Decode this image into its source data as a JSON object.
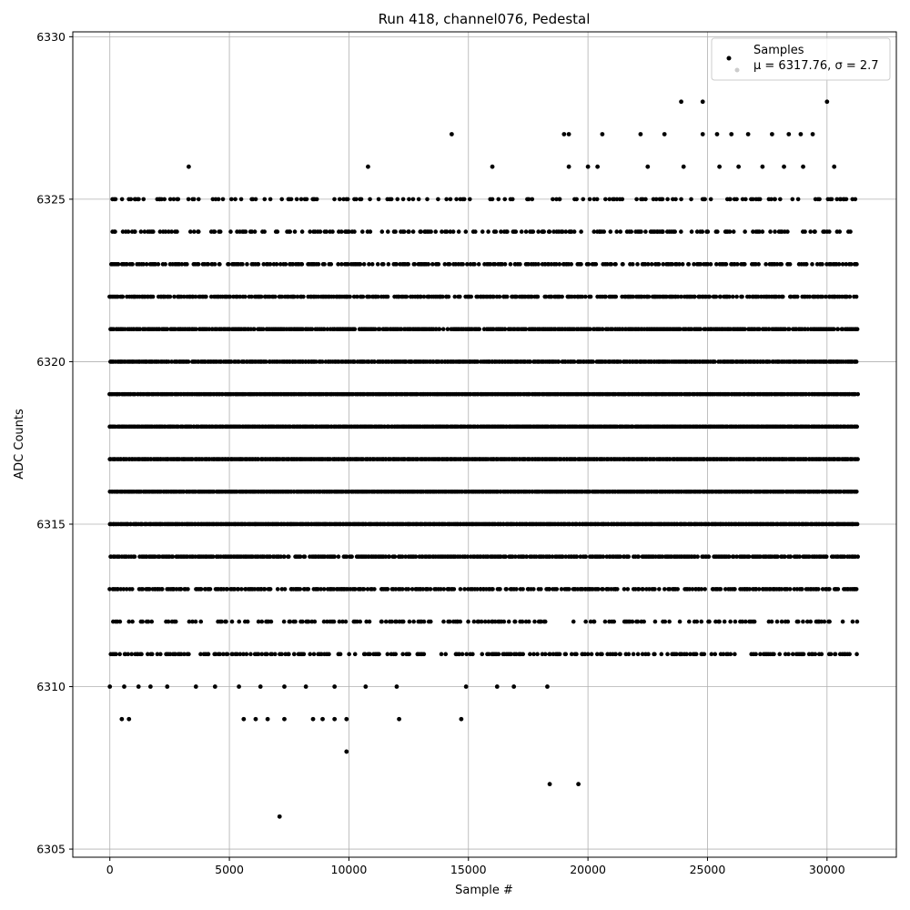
{
  "chart_data": {
    "type": "scatter",
    "title": "Run 418, channel076, Pedestal",
    "xlabel": "Sample #",
    "ylabel": "ADC Counts",
    "xlim": [
      -1550,
      32900
    ],
    "ylim": [
      6304.75,
      6330.15
    ],
    "xticks": [
      0,
      5000,
      10000,
      15000,
      20000,
      25000,
      30000
    ],
    "yticks": [
      6305,
      6310,
      6315,
      6320,
      6325,
      6330
    ],
    "grid": true,
    "legend_position": "top-right",
    "legend": {
      "title": "Samples",
      "entries": [
        "μ = 6317.76, σ = 2.7"
      ]
    },
    "series": [
      {
        "name": "Samples",
        "color": "#000000",
        "x_range": [
          0,
          31300
        ],
        "dense_levels": [
          {
            "y": 6311,
            "x_end": 31300,
            "density": 0.45
          },
          {
            "y": 6312,
            "x_end": 31300,
            "density": 0.3
          },
          {
            "y": 6313,
            "x_end": 31300,
            "density": 0.65
          },
          {
            "y": 6314,
            "x_end": 31300,
            "density": 0.8
          },
          {
            "y": 6315,
            "x_end": 31300,
            "density": 1.0
          },
          {
            "y": 6316,
            "x_end": 31300,
            "density": 1.0
          },
          {
            "y": 6317,
            "x_end": 31300,
            "density": 1.0
          },
          {
            "y": 6318,
            "x_end": 31300,
            "density": 1.0
          },
          {
            "y": 6319,
            "x_end": 31300,
            "density": 1.0
          },
          {
            "y": 6320,
            "x_end": 31300,
            "density": 0.95
          },
          {
            "y": 6321,
            "x_end": 31300,
            "density": 0.9
          },
          {
            "y": 6322,
            "x_end": 31300,
            "density": 0.7
          },
          {
            "y": 6323,
            "x_end": 31300,
            "density": 0.55
          },
          {
            "y": 6324,
            "x_end": 31300,
            "density": 0.4
          },
          {
            "y": 6325,
            "x_end": 31300,
            "density": 0.3
          }
        ],
        "outliers": [
          {
            "x": 3300,
            "y": 6326
          },
          {
            "x": 10800,
            "y": 6326
          },
          {
            "x": 16000,
            "y": 6326
          },
          {
            "x": 19200,
            "y": 6326
          },
          {
            "x": 20000,
            "y": 6326
          },
          {
            "x": 20400,
            "y": 6326
          },
          {
            "x": 22500,
            "y": 6326
          },
          {
            "x": 24000,
            "y": 6326
          },
          {
            "x": 25500,
            "y": 6326
          },
          {
            "x": 26300,
            "y": 6326
          },
          {
            "x": 27300,
            "y": 6326
          },
          {
            "x": 28200,
            "y": 6326
          },
          {
            "x": 29000,
            "y": 6326
          },
          {
            "x": 30300,
            "y": 6326
          },
          {
            "x": 14300,
            "y": 6327
          },
          {
            "x": 19000,
            "y": 6327
          },
          {
            "x": 19200,
            "y": 6327
          },
          {
            "x": 20600,
            "y": 6327
          },
          {
            "x": 22200,
            "y": 6327
          },
          {
            "x": 23200,
            "y": 6327
          },
          {
            "x": 24800,
            "y": 6327
          },
          {
            "x": 25400,
            "y": 6327
          },
          {
            "x": 26000,
            "y": 6327
          },
          {
            "x": 26700,
            "y": 6327
          },
          {
            "x": 27700,
            "y": 6327
          },
          {
            "x": 28400,
            "y": 6327
          },
          {
            "x": 28900,
            "y": 6327
          },
          {
            "x": 29400,
            "y": 6327
          },
          {
            "x": 23900,
            "y": 6328
          },
          {
            "x": 24800,
            "y": 6328
          },
          {
            "x": 30000,
            "y": 6328
          },
          {
            "x": 0,
            "y": 6310
          },
          {
            "x": 600,
            "y": 6310
          },
          {
            "x": 1200,
            "y": 6310
          },
          {
            "x": 1700,
            "y": 6310
          },
          {
            "x": 2400,
            "y": 6310
          },
          {
            "x": 3600,
            "y": 6310
          },
          {
            "x": 4400,
            "y": 6310
          },
          {
            "x": 5400,
            "y": 6310
          },
          {
            "x": 6300,
            "y": 6310
          },
          {
            "x": 7300,
            "y": 6310
          },
          {
            "x": 8200,
            "y": 6310
          },
          {
            "x": 9400,
            "y": 6310
          },
          {
            "x": 10700,
            "y": 6310
          },
          {
            "x": 12000,
            "y": 6310
          },
          {
            "x": 14900,
            "y": 6310
          },
          {
            "x": 16200,
            "y": 6310
          },
          {
            "x": 16900,
            "y": 6310
          },
          {
            "x": 18300,
            "y": 6310
          },
          {
            "x": 500,
            "y": 6309
          },
          {
            "x": 800,
            "y": 6309
          },
          {
            "x": 5600,
            "y": 6309
          },
          {
            "x": 6100,
            "y": 6309
          },
          {
            "x": 6600,
            "y": 6309
          },
          {
            "x": 7300,
            "y": 6309
          },
          {
            "x": 8500,
            "y": 6309
          },
          {
            "x": 8900,
            "y": 6309
          },
          {
            "x": 9400,
            "y": 6309
          },
          {
            "x": 9900,
            "y": 6309
          },
          {
            "x": 12100,
            "y": 6309
          },
          {
            "x": 14700,
            "y": 6309
          },
          {
            "x": 9900,
            "y": 6308
          },
          {
            "x": 18400,
            "y": 6307
          },
          {
            "x": 19600,
            "y": 6307
          },
          {
            "x": 7100,
            "y": 6306
          }
        ]
      }
    ]
  }
}
